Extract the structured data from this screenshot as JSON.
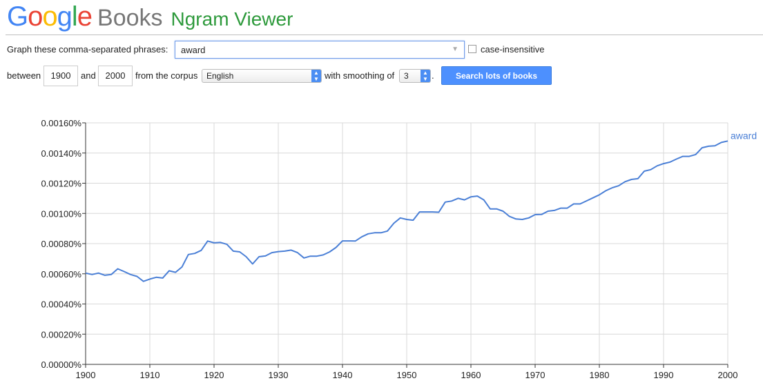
{
  "header": {
    "logo_google": "Google",
    "logo_books": "Books",
    "title": "Ngram Viewer"
  },
  "form": {
    "phrases_label": "Graph these comma-separated phrases:",
    "phrases_value": "award",
    "case_insensitive_label": "case-insensitive",
    "case_insensitive_checked": false,
    "between_label": "between",
    "start_year": "1900",
    "and_label": "and",
    "end_year": "2000",
    "corpus_label": "from the corpus",
    "corpus_value": "English",
    "smoothing_label": "with smoothing of",
    "smoothing_value": "3",
    "period": ".",
    "search_button": "Search lots of books"
  },
  "colors": {
    "series": "#4a7fd6",
    "grid": "#d8d8d8",
    "google_blue": "#4285f4",
    "google_red": "#ea4335",
    "google_yellow": "#fbbc05",
    "google_green": "#34a853",
    "ngram_green": "#2e9a3c",
    "button": "#4d90fe"
  },
  "chart_data": {
    "type": "line",
    "xlabel": "",
    "ylabel": "",
    "xlim": [
      1900,
      2000
    ],
    "ylim": [
      0,
      0.0016
    ],
    "x_ticks": [
      1900,
      1910,
      1920,
      1930,
      1940,
      1950,
      1960,
      1970,
      1980,
      1990,
      2000
    ],
    "y_ticks": [
      0,
      0.0002,
      0.0004,
      0.0006,
      0.0008,
      0.001,
      0.0012,
      0.0014,
      0.0016
    ],
    "y_tick_labels": [
      "0.00000%",
      "0.00020%",
      "0.00040%",
      "0.00060%",
      "0.00080%",
      "0.00100%",
      "0.00120%",
      "0.00140%",
      "0.00160%"
    ],
    "grid": true,
    "legend": "end-of-line label",
    "series": [
      {
        "name": "award",
        "x": [
          1900,
          1901,
          1902,
          1903,
          1904,
          1905,
          1906,
          1907,
          1908,
          1909,
          1910,
          1911,
          1912,
          1913,
          1914,
          1915,
          1916,
          1917,
          1918,
          1919,
          1920,
          1921,
          1922,
          1923,
          1924,
          1925,
          1926,
          1927,
          1928,
          1929,
          1930,
          1931,
          1932,
          1933,
          1934,
          1935,
          1936,
          1937,
          1938,
          1939,
          1940,
          1941,
          1942,
          1943,
          1944,
          1945,
          1946,
          1947,
          1948,
          1949,
          1950,
          1951,
          1952,
          1953,
          1954,
          1955,
          1956,
          1957,
          1958,
          1959,
          1960,
          1961,
          1962,
          1963,
          1964,
          1965,
          1966,
          1967,
          1968,
          1969,
          1970,
          1971,
          1972,
          1973,
          1974,
          1975,
          1976,
          1977,
          1978,
          1979,
          1980,
          1981,
          1982,
          1983,
          1984,
          1985,
          1986,
          1987,
          1988,
          1989,
          1990,
          1991,
          1992,
          1993,
          1994,
          1995,
          1996,
          1997,
          1998,
          1999,
          2000
        ],
        "values": [
          0.000605,
          0.000595,
          0.000605,
          0.00059,
          0.000595,
          0.000633,
          0.000615,
          0.000595,
          0.000583,
          0.00055,
          0.000565,
          0.000577,
          0.000572,
          0.00062,
          0.00061,
          0.000645,
          0.000728,
          0.000735,
          0.000755,
          0.000817,
          0.000805,
          0.000808,
          0.000795,
          0.00075,
          0.000745,
          0.000713,
          0.000665,
          0.000713,
          0.000718,
          0.00074,
          0.000747,
          0.00075,
          0.000757,
          0.00074,
          0.000705,
          0.000717,
          0.000717,
          0.000725,
          0.000745,
          0.000775,
          0.000818,
          0.000818,
          0.000817,
          0.000845,
          0.000865,
          0.000872,
          0.000872,
          0.000883,
          0.000935,
          0.00097,
          0.00096,
          0.000955,
          0.00101,
          0.00101,
          0.00101,
          0.001008,
          0.001075,
          0.001082,
          0.0011,
          0.00109,
          0.00111,
          0.001115,
          0.00109,
          0.00103,
          0.00103,
          0.001015,
          0.00098,
          0.000963,
          0.00096,
          0.00097,
          0.000992,
          0.000993,
          0.001015,
          0.00102,
          0.001035,
          0.001035,
          0.001063,
          0.001063,
          0.001083,
          0.001103,
          0.001123,
          0.00115,
          0.00117,
          0.001183,
          0.00121,
          0.001225,
          0.00123,
          0.00128,
          0.00129,
          0.001315,
          0.00133,
          0.00134,
          0.00136,
          0.001378,
          0.001378,
          0.00139,
          0.001435,
          0.001445,
          0.001448,
          0.00147,
          0.00148
        ]
      }
    ]
  }
}
